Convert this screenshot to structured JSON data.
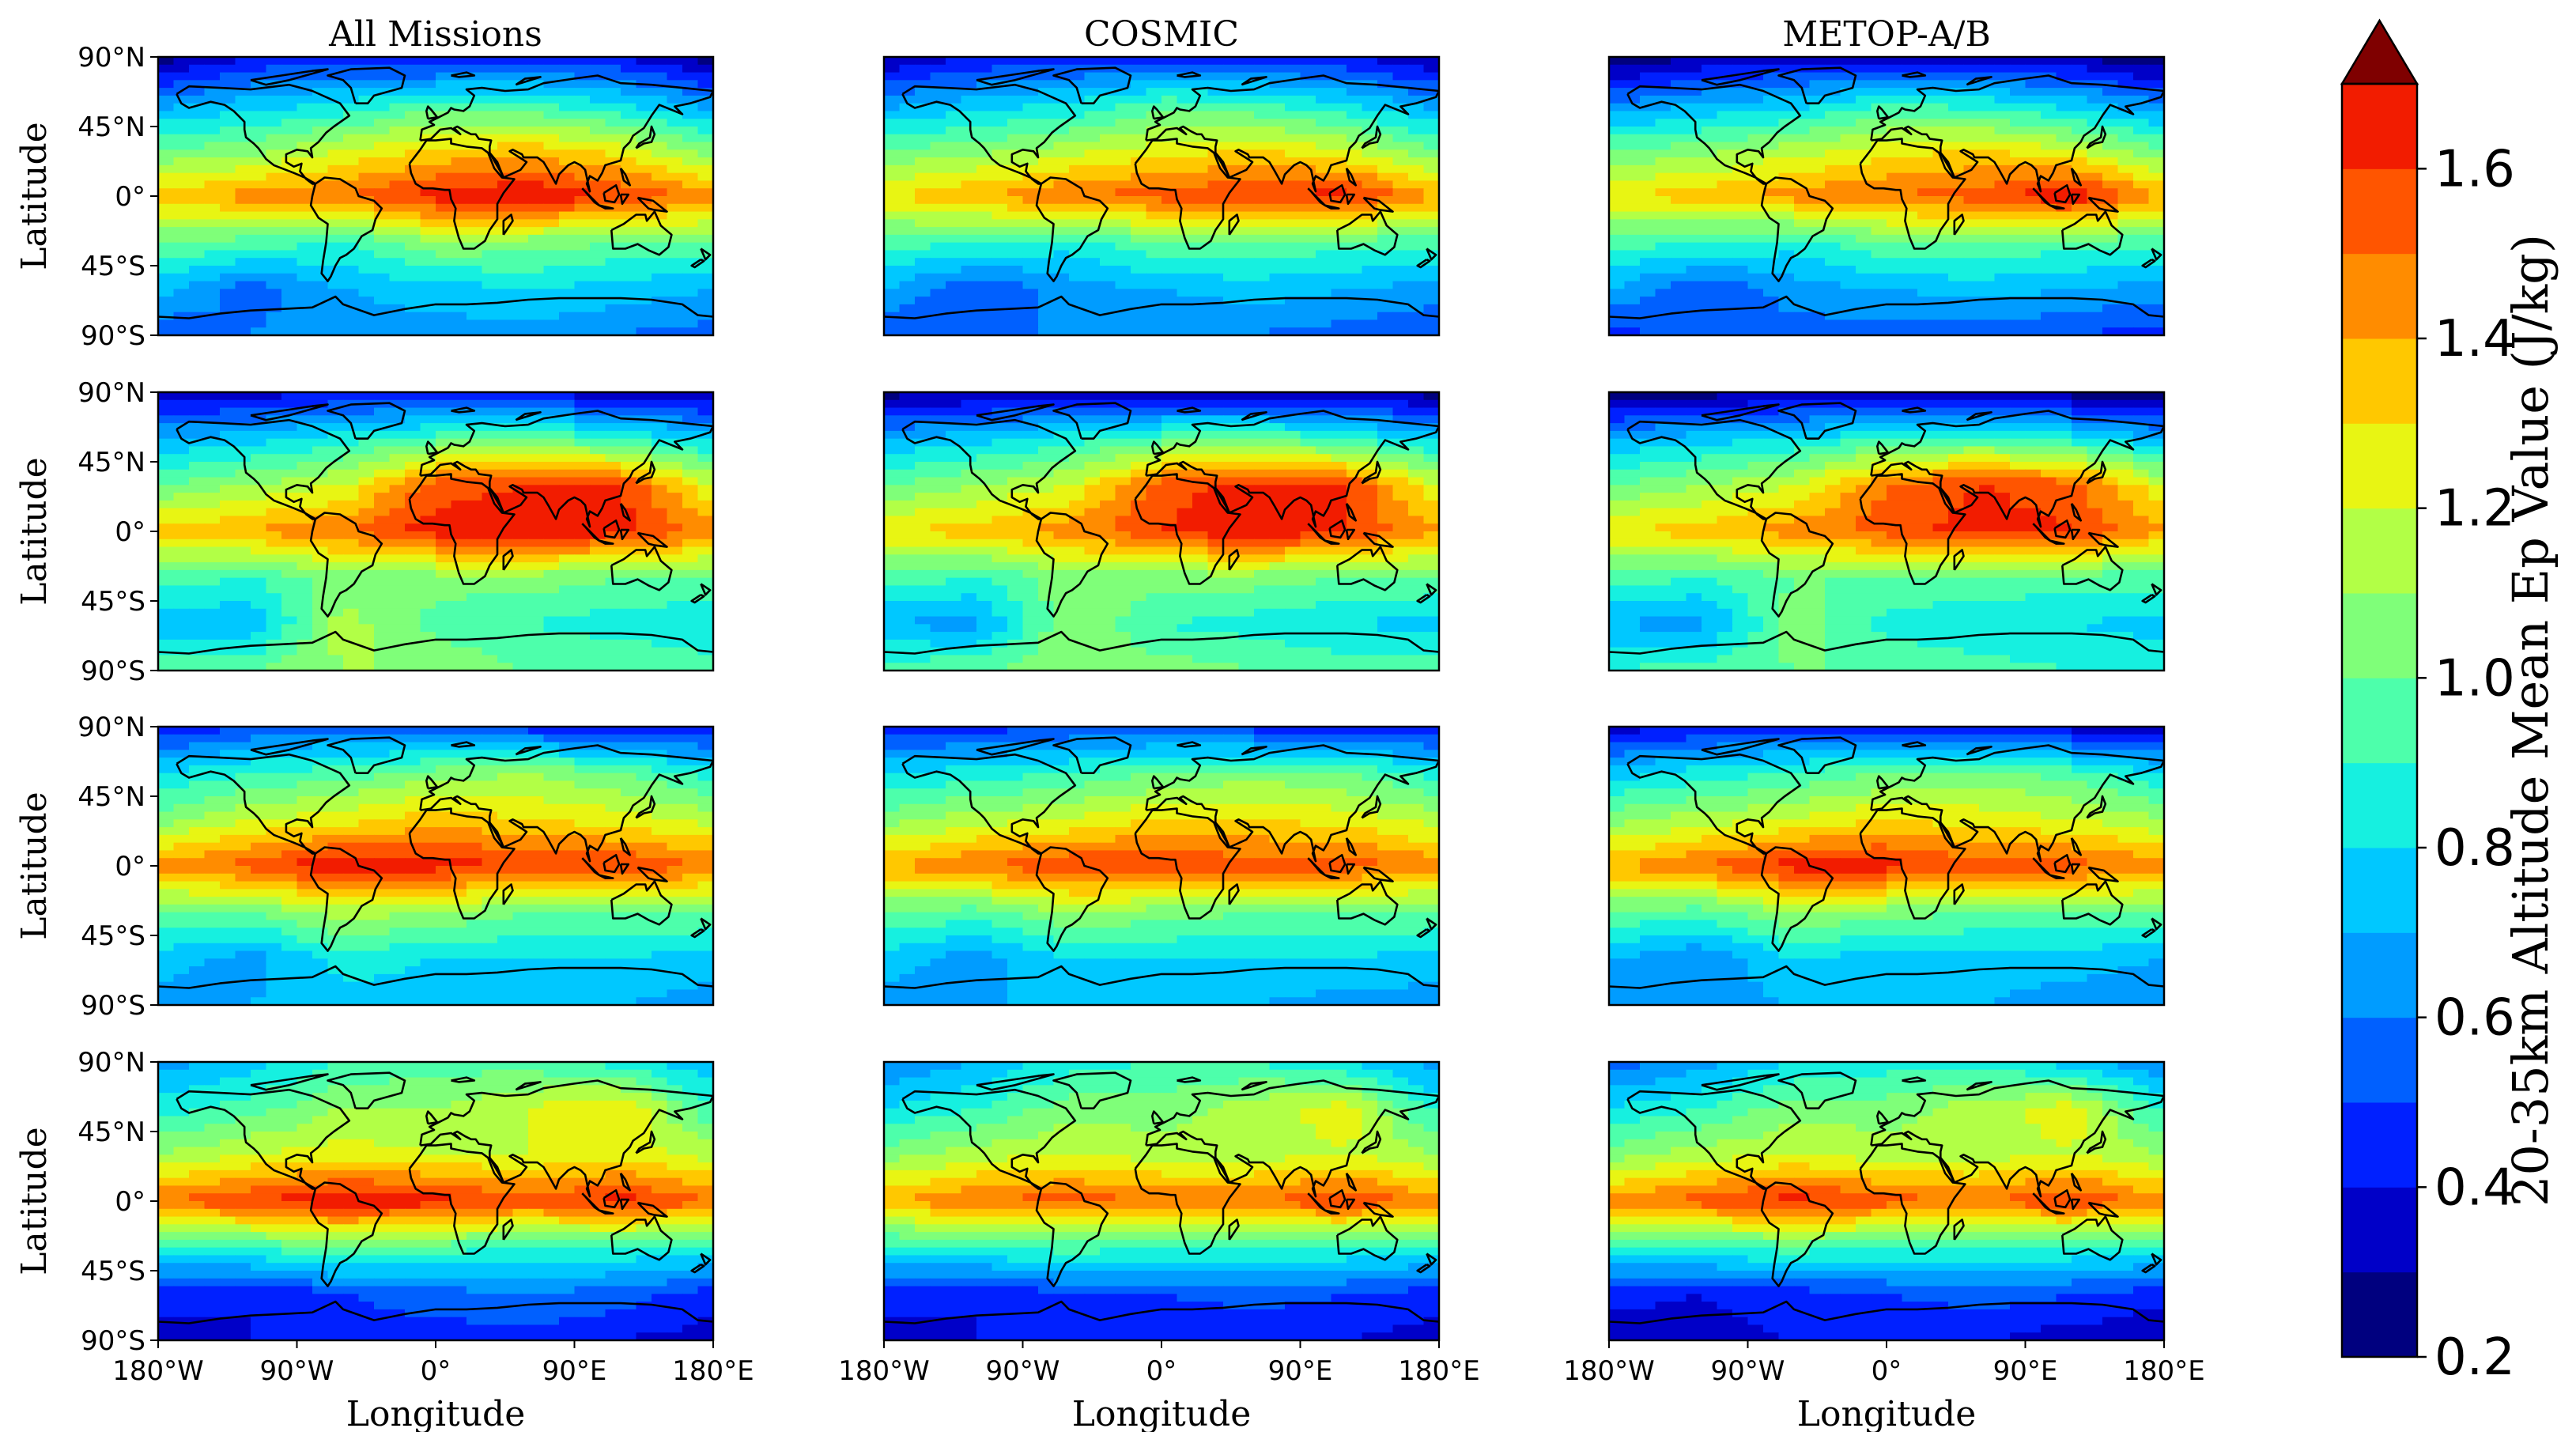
{
  "chart_data": {
    "type": "heatmap",
    "colorbar": {
      "label": "20-35km Altitude Mean Ep Value (J/kg)",
      "range": [
        0.2,
        1.7
      ],
      "levels": [
        0.2,
        0.3,
        0.4,
        0.5,
        0.6,
        0.7,
        0.8,
        0.9,
        1.0,
        1.1,
        1.2,
        1.3,
        1.4,
        1.5,
        1.6,
        1.7
      ],
      "extend": "max",
      "ticks": [
        "0.2",
        "0.4",
        "0.6",
        "0.8",
        "1.0",
        "1.2",
        "1.4",
        "1.6"
      ],
      "colors": [
        "#00007f",
        "#0000c8",
        "#0020ff",
        "#0060ff",
        "#009cff",
        "#00c8ff",
        "#16f0e0",
        "#4dffab",
        "#7fff79",
        "#b2ff46",
        "#e8f513",
        "#ffc800",
        "#ff8c00",
        "#ff5500",
        "#f21c00",
        "#b50000",
        "#7f0000"
      ]
    },
    "column_titles": [
      "All Missions",
      "COSMIC",
      "METOP-A/B"
    ],
    "lon_ticks": [
      "180°W",
      "90°W",
      "0°",
      "90°E",
      "180°E"
    ],
    "lat_ticks": [
      "90°N",
      "45°N",
      "0°",
      "45°S",
      "90°S"
    ],
    "xlabel": "Longitude",
    "ylabel": "Latitude",
    "grid": {
      "lat": [
        90,
        60,
        30,
        0,
        -30,
        -60,
        -90
      ],
      "lon": [
        -180,
        -120,
        -60,
        0,
        60,
        120,
        180
      ]
    },
    "panels": [
      {
        "row": 1,
        "col": 1,
        "title": "All Missions",
        "values": [
          [
            0.25,
            0.4,
            0.45,
            0.35,
            0.45,
            0.4,
            0.25
          ],
          [
            0.65,
            0.75,
            0.8,
            0.95,
            0.9,
            0.8,
            0.65
          ],
          [
            1.0,
            1.05,
            1.2,
            1.3,
            1.35,
            1.25,
            1.05
          ],
          [
            1.35,
            1.45,
            1.5,
            1.65,
            1.7,
            1.6,
            1.45
          ],
          [
            1.0,
            0.95,
            0.9,
            1.1,
            1.05,
            1.0,
            1.0
          ],
          [
            0.75,
            0.55,
            0.7,
            0.75,
            0.8,
            0.75,
            0.7
          ],
          [
            0.5,
            0.6,
            0.65,
            0.65,
            0.65,
            0.6,
            0.55
          ]
        ]
      },
      {
        "row": 1,
        "col": 2,
        "title": "COSMIC",
        "values": [
          [
            0.3,
            0.4,
            0.45,
            0.4,
            0.45,
            0.4,
            0.3
          ],
          [
            0.65,
            0.75,
            0.8,
            0.95,
            0.9,
            0.8,
            0.65
          ],
          [
            1.0,
            1.05,
            1.15,
            1.25,
            1.3,
            1.2,
            1.0
          ],
          [
            1.3,
            1.4,
            1.5,
            1.55,
            1.6,
            1.65,
            1.4
          ],
          [
            0.95,
            0.9,
            0.85,
            1.0,
            1.0,
            0.95,
            0.95
          ],
          [
            0.7,
            0.5,
            0.65,
            0.7,
            0.75,
            0.7,
            0.65
          ],
          [
            0.5,
            0.6,
            0.6,
            0.6,
            0.6,
            0.55,
            0.5
          ]
        ]
      },
      {
        "row": 1,
        "col": 3,
        "title": "METOP-A/B",
        "values": [
          [
            0.2,
            0.3,
            0.35,
            0.3,
            0.35,
            0.3,
            0.2
          ],
          [
            0.6,
            0.7,
            0.75,
            0.9,
            0.85,
            0.75,
            0.6
          ],
          [
            1.0,
            1.05,
            1.15,
            1.25,
            1.3,
            1.2,
            1.0
          ],
          [
            1.3,
            1.35,
            1.45,
            1.5,
            1.55,
            1.7,
            1.4
          ],
          [
            0.95,
            0.9,
            0.85,
            1.0,
            1.0,
            0.95,
            0.95
          ],
          [
            0.7,
            0.5,
            0.65,
            0.7,
            0.75,
            0.7,
            0.65
          ],
          [
            0.45,
            0.55,
            0.55,
            0.55,
            0.55,
            0.5,
            0.45
          ]
        ]
      },
      {
        "row": 2,
        "col": 1,
        "title": "",
        "values": [
          [
            0.3,
            0.35,
            0.4,
            0.4,
            0.35,
            0.35,
            0.3
          ],
          [
            0.7,
            0.75,
            0.85,
            0.95,
            1.0,
            0.9,
            0.75
          ],
          [
            1.0,
            1.1,
            1.2,
            1.55,
            1.6,
            1.6,
            1.2
          ],
          [
            1.35,
            1.4,
            1.5,
            1.65,
            1.7,
            1.65,
            1.45
          ],
          [
            0.95,
            0.9,
            1.05,
            1.05,
            1.05,
            1.0,
            1.0
          ],
          [
            0.75,
            0.7,
            1.15,
            0.95,
            0.9,
            0.85,
            0.8
          ],
          [
            0.95,
            1.0,
            1.1,
            1.1,
            1.0,
            1.0,
            0.95
          ]
        ]
      },
      {
        "row": 2,
        "col": 2,
        "title": "",
        "values": [
          [
            0.25,
            0.3,
            0.35,
            0.35,
            0.3,
            0.3,
            0.25
          ],
          [
            0.7,
            0.75,
            0.85,
            0.95,
            1.0,
            0.9,
            0.75
          ],
          [
            1.0,
            1.1,
            1.2,
            1.55,
            1.65,
            1.6,
            1.2
          ],
          [
            1.3,
            1.35,
            1.45,
            1.6,
            1.7,
            1.6,
            1.4
          ],
          [
            0.95,
            0.9,
            1.05,
            1.05,
            1.05,
            1.0,
            1.0
          ],
          [
            0.7,
            0.65,
            1.1,
            0.9,
            0.85,
            0.8,
            0.75
          ],
          [
            0.95,
            1.0,
            1.05,
            1.05,
            1.0,
            0.95,
            0.95
          ]
        ]
      },
      {
        "row": 2,
        "col": 3,
        "title": "",
        "values": [
          [
            0.2,
            0.25,
            0.3,
            0.3,
            0.25,
            0.25,
            0.2
          ],
          [
            0.7,
            0.75,
            0.8,
            0.9,
            0.95,
            0.85,
            0.7
          ],
          [
            1.0,
            1.1,
            1.2,
            1.5,
            1.6,
            1.55,
            1.2
          ],
          [
            1.3,
            1.35,
            1.45,
            1.55,
            1.65,
            1.6,
            1.4
          ],
          [
            0.95,
            0.9,
            1.0,
            1.0,
            1.0,
            0.95,
            0.95
          ],
          [
            0.7,
            0.65,
            1.05,
            0.85,
            0.8,
            0.8,
            0.75
          ],
          [
            0.9,
            0.95,
            1.0,
            1.0,
            0.95,
            0.9,
            0.9
          ]
        ]
      },
      {
        "row": 3,
        "col": 1,
        "title": "",
        "values": [
          [
            0.4,
            0.5,
            0.55,
            0.5,
            0.45,
            0.4,
            0.4
          ],
          [
            0.8,
            0.9,
            0.95,
            1.05,
            1.1,
            1.0,
            0.85
          ],
          [
            1.05,
            1.2,
            1.25,
            1.35,
            1.3,
            1.25,
            1.15
          ],
          [
            1.45,
            1.55,
            1.7,
            1.65,
            1.6,
            1.6,
            1.5
          ],
          [
            1.0,
            1.0,
            1.15,
            1.1,
            1.0,
            1.0,
            1.0
          ],
          [
            0.75,
            0.65,
            0.85,
            0.8,
            0.8,
            0.8,
            0.75
          ],
          [
            0.65,
            0.7,
            0.75,
            0.75,
            0.75,
            0.7,
            0.65
          ]
        ]
      },
      {
        "row": 3,
        "col": 2,
        "title": "",
        "values": [
          [
            0.4,
            0.45,
            0.5,
            0.5,
            0.45,
            0.4,
            0.4
          ],
          [
            0.8,
            0.85,
            0.9,
            1.0,
            1.05,
            1.0,
            0.85
          ],
          [
            1.05,
            1.15,
            1.2,
            1.3,
            1.3,
            1.25,
            1.15
          ],
          [
            1.4,
            1.5,
            1.6,
            1.6,
            1.55,
            1.55,
            1.45
          ],
          [
            1.0,
            0.95,
            1.1,
            1.05,
            1.0,
            1.0,
            1.0
          ],
          [
            0.75,
            0.65,
            0.8,
            0.8,
            0.8,
            0.8,
            0.75
          ],
          [
            0.65,
            0.7,
            0.7,
            0.7,
            0.7,
            0.65,
            0.65
          ]
        ]
      },
      {
        "row": 3,
        "col": 3,
        "title": "",
        "values": [
          [
            0.35,
            0.4,
            0.45,
            0.45,
            0.4,
            0.35,
            0.35
          ],
          [
            0.75,
            0.85,
            0.9,
            1.0,
            1.05,
            0.95,
            0.8
          ],
          [
            1.05,
            1.15,
            1.2,
            1.3,
            1.25,
            1.2,
            1.1
          ],
          [
            1.4,
            1.5,
            1.65,
            1.65,
            1.55,
            1.55,
            1.45
          ],
          [
            1.0,
            0.95,
            1.1,
            1.05,
            1.0,
            1.0,
            1.0
          ],
          [
            0.7,
            0.6,
            0.8,
            0.75,
            0.75,
            0.75,
            0.7
          ],
          [
            0.6,
            0.65,
            0.7,
            0.7,
            0.7,
            0.65,
            0.6
          ]
        ]
      },
      {
        "row": 4,
        "col": 1,
        "title": "",
        "values": [
          [
            0.65,
            0.75,
            0.9,
            0.95,
            0.95,
            0.85,
            0.7
          ],
          [
            0.85,
            0.95,
            1.1,
            1.1,
            1.2,
            1.3,
            0.9
          ],
          [
            1.1,
            1.2,
            1.25,
            1.2,
            1.2,
            1.25,
            1.15
          ],
          [
            1.5,
            1.6,
            1.7,
            1.65,
            1.55,
            1.65,
            1.5
          ],
          [
            0.85,
            0.9,
            1.0,
            0.95,
            0.9,
            0.9,
            0.85
          ],
          [
            0.45,
            0.4,
            0.5,
            0.55,
            0.6,
            0.55,
            0.45
          ],
          [
            0.35,
            0.4,
            0.45,
            0.45,
            0.45,
            0.4,
            0.35
          ]
        ]
      },
      {
        "row": 4,
        "col": 2,
        "title": "",
        "values": [
          [
            0.6,
            0.7,
            0.85,
            0.9,
            0.9,
            0.8,
            0.65
          ],
          [
            0.8,
            0.9,
            1.05,
            1.05,
            1.15,
            1.25,
            0.85
          ],
          [
            1.05,
            1.15,
            1.2,
            1.15,
            1.15,
            1.2,
            1.1
          ],
          [
            1.4,
            1.5,
            1.55,
            1.5,
            1.5,
            1.6,
            1.45
          ],
          [
            0.85,
            0.9,
            0.95,
            0.9,
            0.9,
            0.9,
            0.85
          ],
          [
            0.45,
            0.4,
            0.5,
            0.5,
            0.55,
            0.5,
            0.45
          ],
          [
            0.35,
            0.4,
            0.4,
            0.4,
            0.4,
            0.4,
            0.35
          ]
        ]
      },
      {
        "row": 4,
        "col": 3,
        "title": "",
        "values": [
          [
            0.55,
            0.65,
            0.8,
            0.85,
            0.85,
            0.75,
            0.6
          ],
          [
            0.8,
            0.9,
            1.05,
            1.05,
            1.15,
            1.25,
            0.85
          ],
          [
            1.05,
            1.15,
            1.2,
            1.15,
            1.15,
            1.2,
            1.1
          ],
          [
            1.45,
            1.55,
            1.65,
            1.55,
            1.5,
            1.6,
            1.45
          ],
          [
            0.85,
            0.9,
            0.95,
            0.9,
            0.9,
            0.9,
            0.85
          ],
          [
            0.45,
            0.4,
            0.45,
            0.5,
            0.55,
            0.5,
            0.45
          ],
          [
            0.3,
            0.35,
            0.4,
            0.4,
            0.4,
            0.35,
            0.3
          ]
        ]
      }
    ]
  }
}
